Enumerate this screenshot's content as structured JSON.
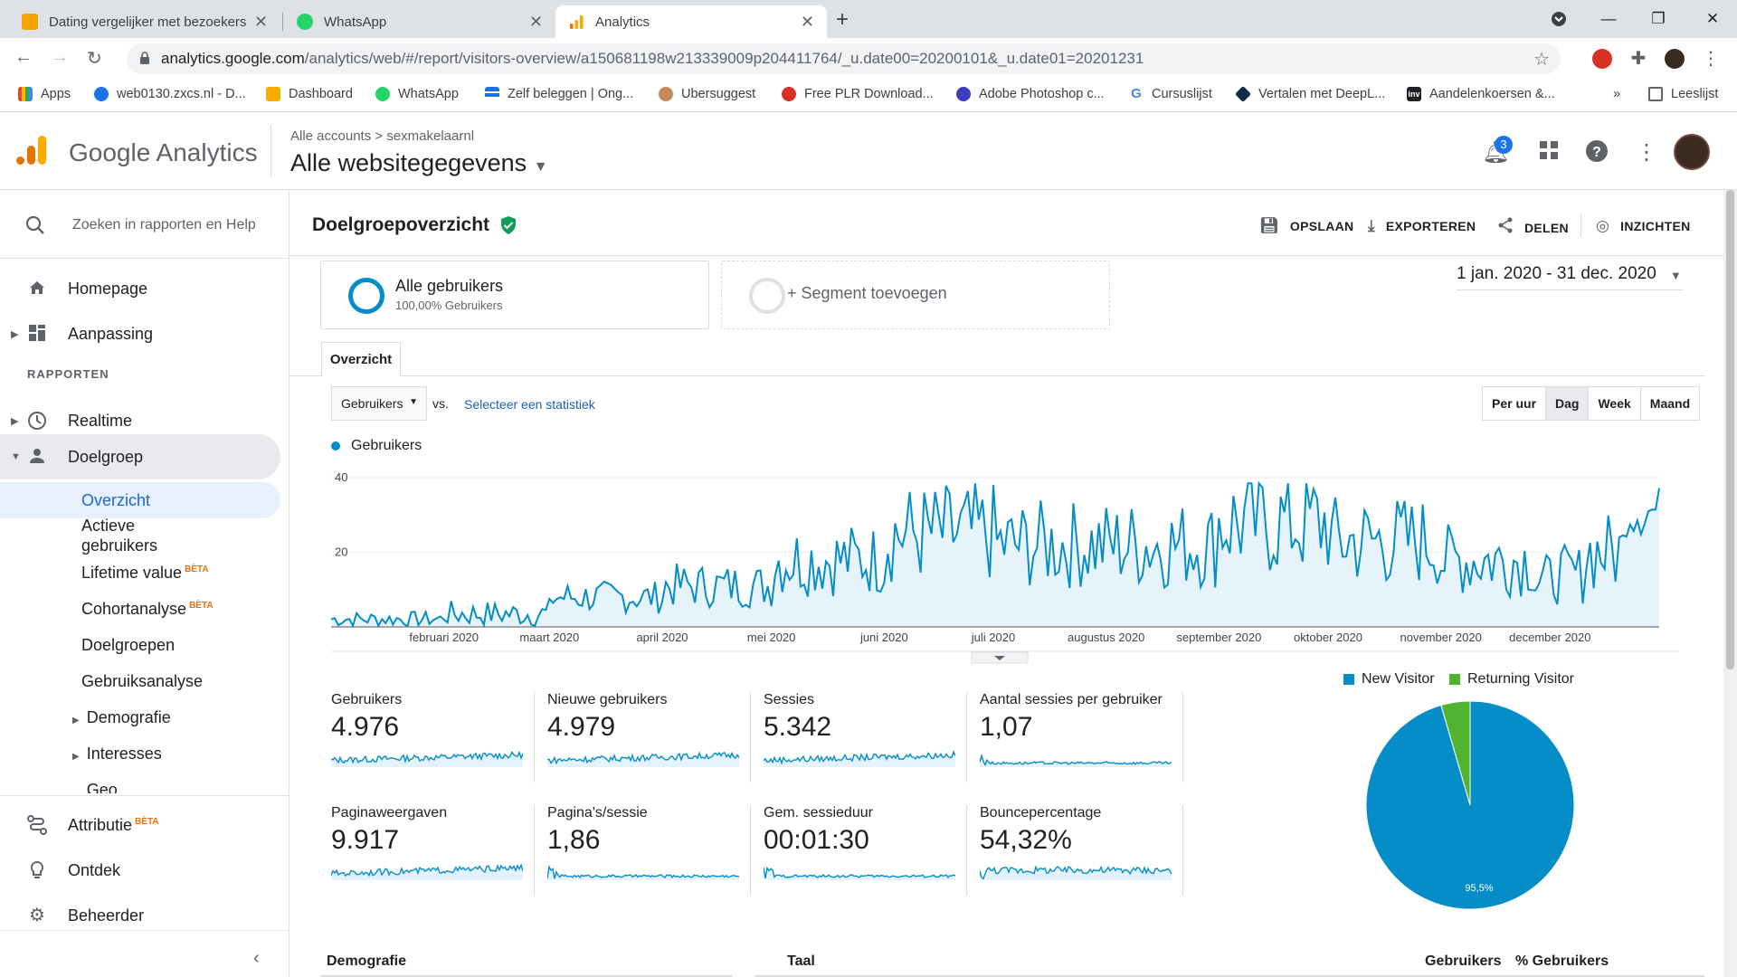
{
  "browser": {
    "tabs": [
      {
        "title": "Dating vergelijker met bezoekers",
        "favicon_color": "#f4a300"
      },
      {
        "title": "WhatsApp",
        "favicon_color": "#25d366"
      },
      {
        "title": "Analytics",
        "favicon_color": "#f9ab00"
      }
    ],
    "url_domain": "analytics.google.com",
    "url_path": "/analytics/web/#/report/visitors-overview/a150681198w213339009p204411764/_u.date00=20200101&_u.date01=20201231",
    "bookmarks": [
      "Apps",
      "web0130.zxcs.nl - D...",
      "Dashboard",
      "WhatsApp",
      "Zelf beleggen | Ong...",
      "Ubersuggest",
      "Free PLR Download...",
      "Adobe Photoshop c...",
      "Cursuslijst",
      "Vertalen met DeepL...",
      "Aandelenkoersen &..."
    ],
    "more_bookmarks": "»",
    "reading_list": "Leeslijst"
  },
  "ga_header": {
    "brand": "Google Analytics",
    "breadcrumb_accounts": "Alle accounts",
    "breadcrumb_sep": ">",
    "breadcrumb_account": "sexmakelaarnl",
    "property": "Alle websitegegevens",
    "notification_count": "3"
  },
  "sidebar": {
    "search_placeholder": "Zoeken in rapporten en Help",
    "home": "Homepage",
    "customization": "Aanpassing",
    "reports_section": "RAPPORTEN",
    "realtime": "Realtime",
    "audience": "Doelgroep",
    "audience_items": [
      "Overzicht",
      "Actieve gebruikers",
      "Lifetime value",
      "Cohortanalyse",
      "Doelgroepen",
      "Gebruiksanalyse",
      "Demografie",
      "Interesses",
      "Geo"
    ],
    "beta": "BÈTA",
    "attribution": "Attributie",
    "discover": "Ontdek",
    "admin": "Beheerder"
  },
  "report": {
    "title": "Doelgroepoverzicht",
    "actions": [
      "OPSLAAN",
      "EXPORTEREN",
      "DELEN",
      "INZICHTEN"
    ],
    "segment_all_title": "Alle gebruikers",
    "segment_all_sub": "100,00% Gebruikers",
    "segment_add": "+ Segment toevoegen",
    "date_range": "1 jan. 2020 - 31 dec. 2020",
    "tab_overview": "Overzicht",
    "metric_select": "Gebruikers",
    "vs": "vs.",
    "select_metric": "Selecteer een statistiek",
    "periods": [
      "Per uur",
      "Dag",
      "Week",
      "Maand"
    ],
    "active_period": "Dag",
    "series_label": "Gebruikers"
  },
  "chart_data": [
    {
      "type": "line",
      "series": [
        {
          "name": "Gebruikers",
          "color": "#058dc7"
        }
      ],
      "x_tick_labels": [
        "februari 2020",
        "maart 2020",
        "april 2020",
        "mei 2020",
        "juni 2020",
        "juli 2020",
        "augustus 2020",
        "september 2020",
        "oktober 2020",
        "november 2020",
        "december 2020"
      ],
      "y_ticks": [
        20,
        40
      ],
      "ylim": [
        0,
        40
      ],
      "x_range": [
        "2020-01-01",
        "2020-12-31"
      ],
      "monthly_avg_users": [
        3,
        5,
        8,
        11,
        18,
        25,
        22,
        22,
        28,
        23,
        18,
        20
      ]
    },
    {
      "type": "pie",
      "slices": [
        {
          "label": "New Visitor",
          "value": 95.5,
          "color": "#058dc7"
        },
        {
          "label": "Returning Visitor",
          "value": 4.5,
          "color": "#50b432"
        }
      ],
      "data_label": "95,5%"
    }
  ],
  "kpis": [
    {
      "label": "Gebruikers",
      "value": "4.976"
    },
    {
      "label": "Nieuwe gebruikers",
      "value": "4.979"
    },
    {
      "label": "Sessies",
      "value": "5.342"
    },
    {
      "label": "Aantal sessies per gebruiker",
      "value": "1,07"
    },
    {
      "label": "Paginaweergaven",
      "value": "9.917"
    },
    {
      "label": "Pagina's/sessie",
      "value": "1,86"
    },
    {
      "label": "Gem. sessieduur",
      "value": "00:01:30"
    },
    {
      "label": "Bouncepercentage",
      "value": "54,32%"
    }
  ],
  "bottom": {
    "demografie": "Demografie",
    "taal": "Taal",
    "gebruikers": "Gebruikers",
    "pct_gebruikers": "% Gebruikers"
  }
}
